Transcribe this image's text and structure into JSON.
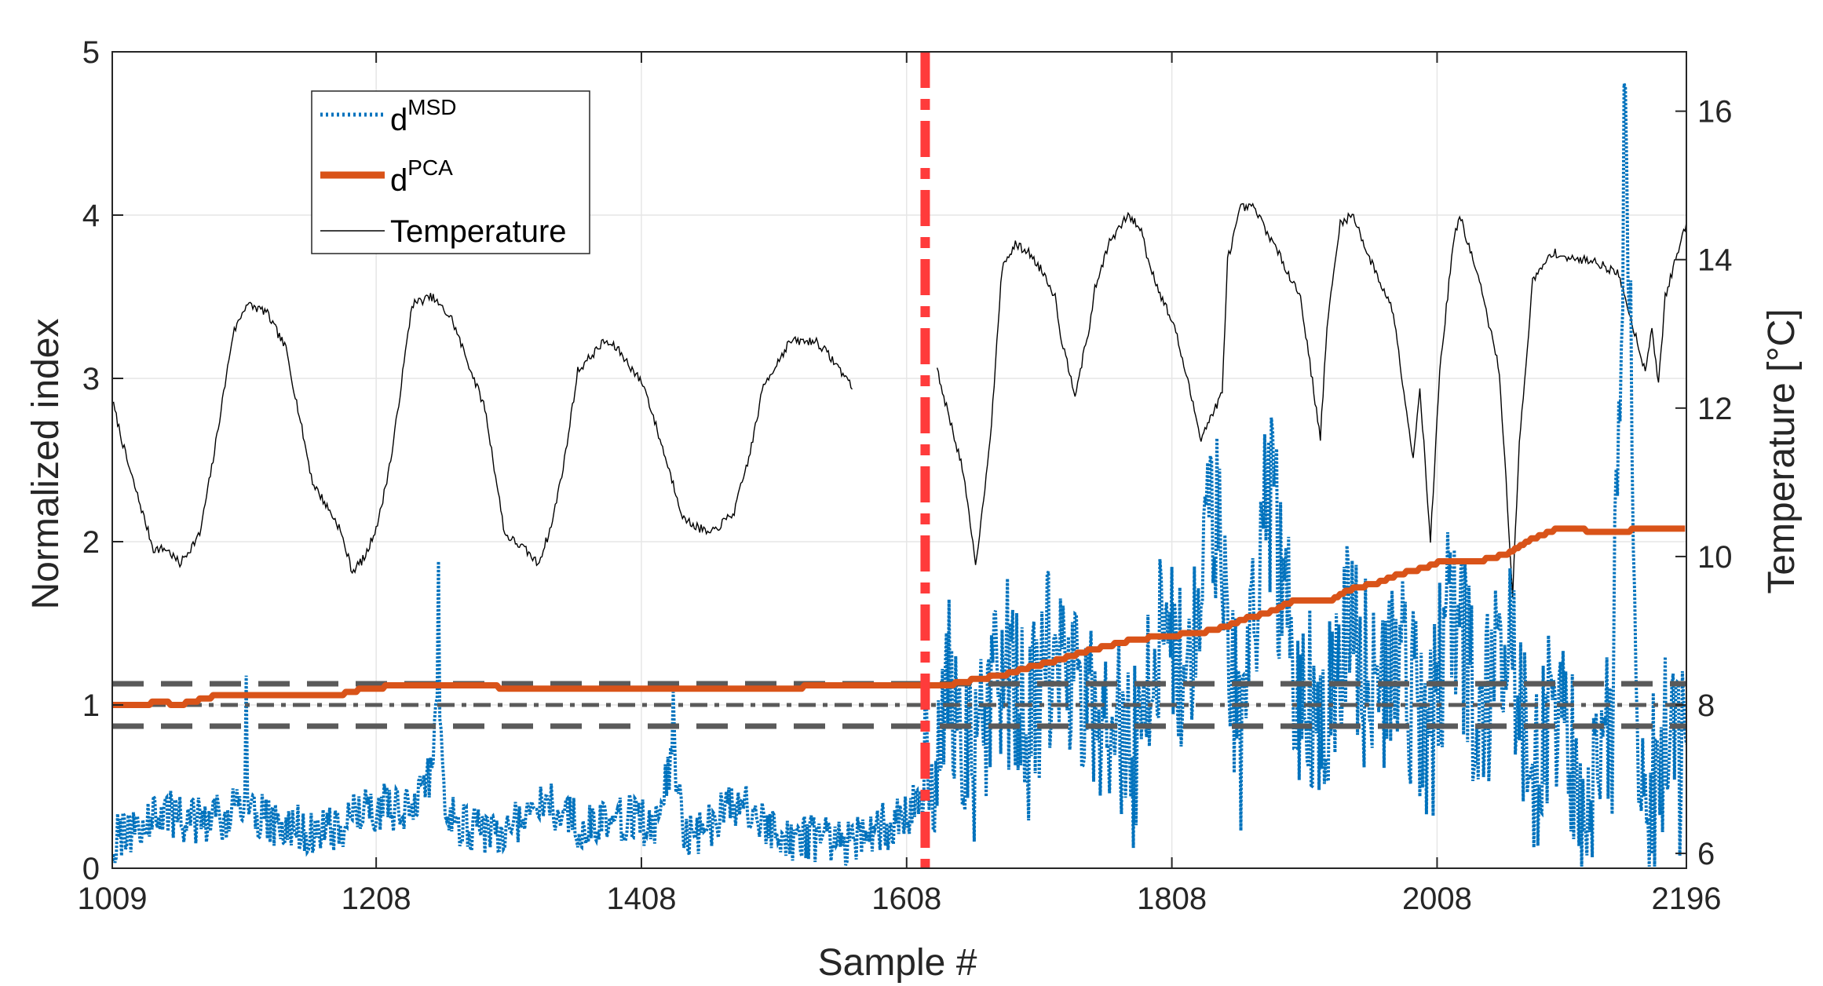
{
  "chart_data": {
    "type": "line",
    "title": "",
    "xlabel": "Sample #",
    "ylabel_left": "Normalized index",
    "ylabel_right": "Temperature [°C]",
    "xlim": [
      1009,
      2196
    ],
    "ylim_left": [
      0,
      5
    ],
    "ylim_right": [
      5.8,
      16.8
    ],
    "grid": true,
    "legend_position": "top-left",
    "x_ticks": [
      1009,
      1208,
      1408,
      1608,
      1808,
      2008,
      2196
    ],
    "y_left_ticks": [
      0,
      1,
      2,
      3,
      4,
      5
    ],
    "y_right_ticks": [
      6,
      8,
      10,
      12,
      14,
      16
    ],
    "legend": [
      {
        "base": "d",
        "sup": "MSD",
        "style": "dotted blue"
      },
      {
        "base": "d",
        "sup": "PCA",
        "style": "thick solid orange"
      },
      {
        "base": "Temperature",
        "sup": "",
        "style": "thin solid black"
      }
    ],
    "colors": {
      "msd": "#0072BD",
      "pca": "#D95319",
      "temperature": "#000000",
      "change_point": "#FF3B3B",
      "threshold": "#5a5a5a"
    },
    "change_point_x": 1622,
    "thresholds": {
      "center": 1.0,
      "upper": 1.13,
      "lower": 0.87
    },
    "series": [
      {
        "name": "d^PCA",
        "axis": "left",
        "x": [
          1009,
          1030,
          1045,
          1060,
          1070,
          1085,
          1100,
          1140,
          1180,
          1190,
          1200,
          1230,
          1300,
          1400,
          1500,
          1560,
          1600,
          1622,
          1640,
          1660,
          1680,
          1700,
          1720,
          1740,
          1760,
          1780,
          1800,
          1830,
          1850,
          1860,
          1880,
          1900,
          1930,
          1940,
          1960,
          1980,
          2000,
          2010,
          2040,
          2060,
          2080,
          2100,
          2140,
          2170,
          2196
        ],
        "values": [
          1.0,
          1.0,
          1.02,
          1.0,
          1.02,
          1.05,
          1.07,
          1.06,
          1.06,
          1.08,
          1.1,
          1.12,
          1.11,
          1.1,
          1.1,
          1.12,
          1.13,
          1.13,
          1.12,
          1.16,
          1.18,
          1.23,
          1.27,
          1.32,
          1.36,
          1.4,
          1.42,
          1.44,
          1.48,
          1.52,
          1.56,
          1.64,
          1.65,
          1.7,
          1.74,
          1.8,
          1.84,
          1.88,
          1.88,
          1.92,
          2.02,
          2.08,
          2.06,
          2.08,
          2.08
        ]
      },
      {
        "name": "Temperature",
        "axis": "right",
        "x": [
          1009,
          1020,
          1040,
          1050,
          1060,
          1075,
          1085,
          1100,
          1110,
          1125,
          1140,
          1160,
          1180,
          1190,
          1200,
          1210,
          1220,
          1235,
          1250,
          1265,
          1290,
          1305,
          1320,
          1330,
          1340,
          1350,
          1360,
          1380,
          1390,
          1410,
          1425,
          1440,
          1460,
          1478,
          1490,
          1500,
          1520,
          1540,
          1550,
          1567,
          1570,
          1631,
          1650,
          1660,
          1665,
          1672,
          1680,
          1690,
          1700,
          1712,
          1720,
          1725,
          1735,
          1745,
          1750,
          1760,
          1775,
          1785,
          1790,
          1800,
          1810,
          1830,
          1846,
          1850,
          1860,
          1870,
          1885,
          1905,
          1920,
          1925,
          1935,
          1945,
          1955,
          1975,
          1990,
          1995,
          2003,
          2010,
          2020,
          2025,
          2040,
          2055,
          2065,
          2070,
          2080,
          2095,
          2110,
          2125,
          2145,
          2165,
          2170,
          2175,
          2180,
          2196
        ],
        "values": [
          12.1,
          11.3,
          10.1,
          10.1,
          9.9,
          10.3,
          11.3,
          13.0,
          13.4,
          13.3,
          12.8,
          11.0,
          10.4,
          9.8,
          10.0,
          10.5,
          11.4,
          13.4,
          13.5,
          13.2,
          12.0,
          10.3,
          10.1,
          9.9,
          10.4,
          11.3,
          12.5,
          12.9,
          12.8,
          12.3,
          11.4,
          10.5,
          10.3,
          10.6,
          11.4,
          12.3,
          12.9,
          12.9,
          12.7,
          12.3,
          12.8,
          12.5,
          11.2,
          9.9,
          10.6,
          11.8,
          13.9,
          14.2,
          14.1,
          13.8,
          13.5,
          12.9,
          12.2,
          13.0,
          13.6,
          14.2,
          14.6,
          14.4,
          14.0,
          13.5,
          13.1,
          11.6,
          12.2,
          14.0,
          14.7,
          14.7,
          14.2,
          13.5,
          11.6,
          13.1,
          14.5,
          14.6,
          14.1,
          13.3,
          11.3,
          12.3,
          10.2,
          12.5,
          14.2,
          14.6,
          13.7,
          12.5,
          9.5,
          11.5,
          13.7,
          14.1,
          14.0,
          14.0,
          13.8,
          12.5,
          13.1,
          12.3,
          13.5,
          14.5
        ]
      },
      {
        "name": "d^MSD",
        "axis": "left",
        "style": "noisy index; key points only",
        "x": [
          1009,
          1030,
          1050,
          1070,
          1090,
          1110,
          1130,
          1150,
          1170,
          1190,
          1210,
          1230,
          1250,
          1255,
          1260,
          1280,
          1300,
          1320,
          1340,
          1360,
          1380,
          1400,
          1420,
          1432,
          1440,
          1460,
          1480,
          1500,
          1520,
          1540,
          1560,
          1580,
          1600,
          1622,
          1640,
          1660,
          1680,
          1700,
          1720,
          1740,
          1760,
          1780,
          1800,
          1820,
          1840,
          1860,
          1880,
          1900,
          1920,
          1940,
          1960,
          1980,
          2000,
          2020,
          2040,
          2060,
          2080,
          2100,
          2120,
          2140,
          2150,
          2160,
          2170,
          2180,
          2196
        ],
        "values": [
          0.05,
          0.22,
          0.35,
          0.28,
          0.3,
          0.45,
          0.22,
          0.2,
          0.12,
          0.3,
          0.42,
          0.4,
          0.8,
          1.88,
          0.4,
          0.15,
          0.12,
          0.35,
          0.45,
          0.25,
          0.2,
          0.3,
          0.2,
          1.1,
          0.05,
          0.25,
          0.5,
          0.2,
          0.1,
          0.05,
          0.03,
          0.15,
          0.25,
          0.55,
          1.1,
          0.6,
          1.3,
          0.8,
          1.4,
          0.9,
          1.0,
          0.7,
          1.5,
          1.1,
          2.2,
          0.8,
          2.4,
          1.2,
          0.9,
          1.6,
          1.0,
          1.4,
          0.6,
          1.7,
          0.8,
          1.4,
          0.6,
          1.1,
          0.35,
          0.8,
          4.78,
          0.9,
          0.45,
          0.75,
          0.6
        ]
      }
    ]
  }
}
